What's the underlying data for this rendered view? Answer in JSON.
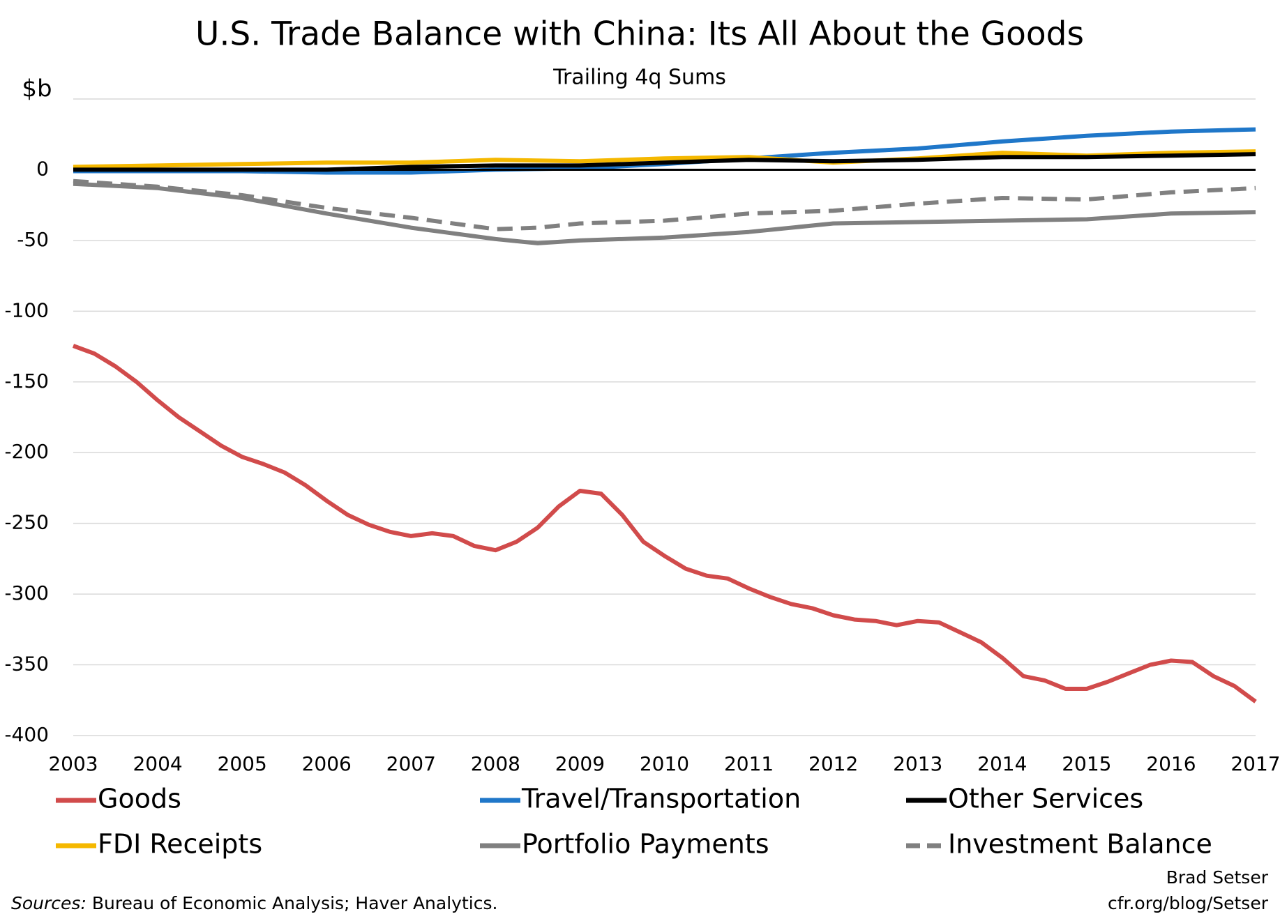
{
  "chart_data": {
    "type": "line",
    "title": "U.S. Trade Balance with China:  Its All About the Goods",
    "subtitle": "Trailing 4q Sums",
    "y_label": "$b",
    "xlim": [
      2003,
      2017
    ],
    "xticks": [
      2003,
      2004,
      2005,
      2006,
      2007,
      2008,
      2009,
      2010,
      2011,
      2012,
      2013,
      2014,
      2015,
      2016,
      2017
    ],
    "ylim": [
      -400,
      50
    ],
    "yticks": [
      -400,
      -350,
      -300,
      -250,
      -200,
      -150,
      -100,
      -50,
      0
    ],
    "grid": true,
    "series": [
      {
        "name": "Goods",
        "color": "#d14b4b",
        "dash": false,
        "x": [
          2003,
          2003.25,
          2003.5,
          2003.75,
          2004,
          2004.25,
          2004.5,
          2004.75,
          2005,
          2005.25,
          2005.5,
          2005.75,
          2006,
          2006.25,
          2006.5,
          2006.75,
          2007,
          2007.25,
          2007.5,
          2007.75,
          2008,
          2008.25,
          2008.5,
          2008.75,
          2009,
          2009.25,
          2009.5,
          2009.75,
          2010,
          2010.25,
          2010.5,
          2010.75,
          2011,
          2011.25,
          2011.5,
          2011.75,
          2012,
          2012.25,
          2012.5,
          2012.75,
          2013,
          2013.25,
          2013.5,
          2013.75,
          2014,
          2014.25,
          2014.5,
          2014.75,
          2015,
          2015.25,
          2015.5,
          2015.75,
          2016,
          2016.25,
          2016.5,
          2016.75,
          2017
        ],
        "values": [
          -124.5,
          -130,
          -139,
          -150,
          -163,
          -175,
          -185,
          -195,
          -203,
          -208,
          -214,
          -223,
          -234,
          -244,
          -251,
          -256,
          -259,
          -257,
          -259,
          -266,
          -269,
          -263,
          -253,
          -238,
          -227,
          -229,
          -244,
          -263,
          -273,
          -282,
          -287,
          -289,
          -296,
          -302,
          -307,
          -310,
          -315,
          -318,
          -319,
          -322,
          -319,
          -320,
          -327,
          -334,
          -345,
          -358,
          -361,
          -367,
          -367,
          -362,
          -356,
          -350,
          -347,
          -348,
          -358,
          -365,
          -376
        ]
      },
      {
        "name": "Travel/Transportation",
        "color": "#1f77c9",
        "dash": false,
        "x": [
          2003,
          2004,
          2005,
          2006,
          2007,
          2008,
          2009,
          2010,
          2011,
          2012,
          2013,
          2014,
          2015,
          2016,
          2017
        ],
        "values": [
          -1,
          -1,
          -1,
          -2,
          -2,
          0,
          1,
          4,
          8,
          12,
          15,
          20,
          24,
          27,
          28.5
        ]
      },
      {
        "name": "Other Services",
        "color": "#000000",
        "dash": false,
        "x": [
          2003,
          2004,
          2005,
          2006,
          2007,
          2008,
          2009,
          2010,
          2011,
          2012,
          2013,
          2014,
          2015,
          2016,
          2017
        ],
        "values": [
          0,
          0,
          0,
          0,
          2,
          3,
          3,
          5,
          7,
          6,
          7,
          9,
          9,
          10,
          11
        ]
      },
      {
        "name": "FDI Receipts",
        "color": "#f5b800",
        "dash": false,
        "x": [
          2003,
          2004,
          2005,
          2006,
          2007,
          2008,
          2009,
          2010,
          2011,
          2012,
          2013,
          2014,
          2015,
          2016,
          2017
        ],
        "values": [
          2,
          3,
          4,
          5,
          5,
          7,
          6,
          8,
          9,
          5,
          8,
          12,
          10,
          12,
          13
        ]
      },
      {
        "name": "Portfolio Payments",
        "color": "#808080",
        "dash": false,
        "x": [
          2003,
          2004,
          2005,
          2006,
          2007,
          2008,
          2008.5,
          2009,
          2010,
          2011,
          2012,
          2013,
          2014,
          2015,
          2016,
          2017
        ],
        "values": [
          -10,
          -13,
          -20,
          -31,
          -41,
          -49,
          -52,
          -50,
          -48,
          -44,
          -38,
          -37,
          -36,
          -35,
          -31,
          -30
        ]
      },
      {
        "name": "Investment Balance",
        "color": "#808080",
        "dash": true,
        "x": [
          2003,
          2004,
          2005,
          2006,
          2007,
          2008,
          2008.5,
          2009,
          2010,
          2011,
          2012,
          2013,
          2014,
          2015,
          2016,
          2017
        ],
        "values": [
          -8,
          -12,
          -18,
          -27,
          -34,
          -42,
          -41,
          -38,
          -36,
          -31,
          -29,
          -24,
          -20,
          -21,
          -16,
          -13
        ]
      }
    ],
    "source_label": "Sources:",
    "source": "Bureau of Economic Analysis; Haver Analytics.",
    "credit": [
      "Brad Setser",
      "cfr.org/blog/Setser"
    ]
  }
}
